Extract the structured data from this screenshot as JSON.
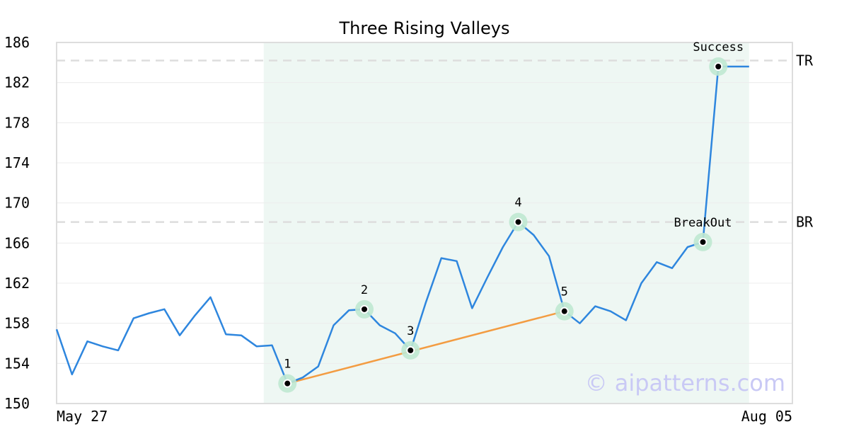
{
  "chart_data": {
    "type": "line",
    "title": "Three Rising Valleys",
    "xlabel": "",
    "ylabel": "",
    "x_tick_labels": [
      "May 27",
      "Aug 05"
    ],
    "y_ticks": [
      150,
      154,
      158,
      162,
      166,
      170,
      174,
      178,
      182,
      186
    ],
    "ylim": [
      150,
      186
    ],
    "grid": "horizontal",
    "colors": {
      "series": "#2e86de",
      "trendline": "#f39c42",
      "highlight_band": "#eef7f3",
      "marker_halo": "#bfe8d2",
      "level_lines": "#dddddd"
    },
    "series": [
      {
        "values": [
          157.4,
          152.9,
          156.2,
          155.7,
          155.3,
          158.5,
          159.0,
          159.4,
          156.8,
          158.8,
          160.6,
          156.9,
          156.8,
          155.7,
          155.8,
          152.0,
          152.6,
          153.7,
          157.8,
          159.3,
          159.4,
          157.8,
          157.0,
          155.3,
          160.1,
          164.5,
          164.2,
          159.5,
          162.6,
          165.6,
          168.1,
          166.8,
          164.7,
          159.2,
          158.0,
          159.7,
          159.2,
          158.3,
          162.0,
          164.1,
          163.5,
          165.6,
          166.1,
          183.6,
          183.6,
          183.6
        ]
      }
    ],
    "highlight_band": {
      "start_index": 13,
      "end_index": 45
    },
    "levels": [
      {
        "label": "TR",
        "value": 184.2
      },
      {
        "label": "BR",
        "value": 168.1
      }
    ],
    "trendline": {
      "from_index": 15,
      "from_value": 152.0,
      "to_index": 33,
      "to_value": 159.2
    },
    "points": [
      {
        "label": "1",
        "index": 15,
        "value": 152.0,
        "label_pos": "above"
      },
      {
        "label": "2",
        "index": 20,
        "value": 159.4,
        "label_pos": "above"
      },
      {
        "label": "3",
        "index": 23,
        "value": 155.3,
        "label_pos": "above"
      },
      {
        "label": "4",
        "index": 30,
        "value": 168.1,
        "label_pos": "above"
      },
      {
        "label": "5",
        "index": 33,
        "value": 159.2,
        "label_pos": "above"
      },
      {
        "label": "BreakOut",
        "index": 42,
        "value": 166.1,
        "label_pos": "above"
      },
      {
        "label": "Success",
        "index": 43,
        "value": 183.6,
        "label_pos": "above"
      }
    ]
  },
  "watermark": "© aipatterns.com"
}
